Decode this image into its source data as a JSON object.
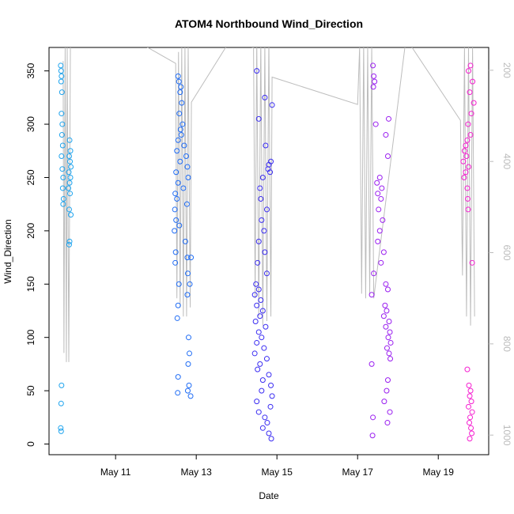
{
  "chart_data": {
    "type": "scatter",
    "title": "ATOM4 Northbound Wind_Direction",
    "x_label": "Date",
    "y_label": "Wind_Direction",
    "xlim": [
      9.35,
      20.25
    ],
    "ylim": [
      -10,
      372
    ],
    "y2lim": [
      1043,
      150
    ],
    "xticks": [
      {
        "value": 11,
        "label": "May 11"
      },
      {
        "value": 13,
        "label": "May 13"
      },
      {
        "value": 15,
        "label": "May 15"
      },
      {
        "value": 17,
        "label": "May 17"
      },
      {
        "value": 19,
        "label": "May 19"
      }
    ],
    "yticks": [
      0,
      50,
      100,
      150,
      200,
      250,
      300,
      350
    ],
    "y2ticks": [
      200,
      400,
      600,
      800,
      1000
    ],
    "series": [
      {
        "color": "#bdbdbd",
        "axis": "y2",
        "line": true,
        "x": [
          9.7,
          9.72,
          9.75,
          9.78,
          9.8,
          9.84,
          9.88,
          9.91,
          11.2,
          12.49,
          12.52,
          12.56,
          12.6,
          12.64,
          12.68,
          12.72,
          12.76,
          12.8,
          12.85,
          12.88,
          13.8,
          14.42,
          14.46,
          14.5,
          14.55,
          14.6,
          14.65,
          14.7,
          14.75,
          14.8,
          14.85,
          14.88,
          17.0,
          17.05,
          17.1,
          17.15,
          17.2,
          17.25,
          17.3,
          17.35,
          17.4,
          18.2,
          19.55,
          19.6,
          19.65,
          19.7,
          19.75,
          19.8,
          19.85,
          19.9
        ],
        "values": [
          180,
          820,
          150,
          840,
          150,
          840,
          140,
          120,
          120,
          185,
          700,
          160,
          720,
          150,
          740,
          150,
          740,
          150,
          720,
          270,
          140,
          150,
          700,
          130,
          740,
          130,
          760,
          140,
          750,
          130,
          740,
          215,
          275,
          150,
          690,
          140,
          700,
          150,
          690,
          150,
          700,
          130,
          310,
          650,
          150,
          740,
          150,
          760,
          150,
          740
        ]
      },
      {
        "color": "#1fa4ee",
        "x": [
          9.64,
          9.65,
          9.66,
          9.65,
          9.67,
          9.66,
          9.68,
          9.67,
          9.69,
          9.66,
          9.68,
          9.7,
          9.69,
          9.71,
          9.7,
          9.66,
          9.65,
          9.64,
          9.65,
          9.86,
          9.88,
          9.85,
          9.87,
          9.89,
          9.84,
          9.88,
          9.86,
          9.83,
          9.87,
          9.85,
          9.89,
          9.86,
          9.85
        ],
        "values": [
          355,
          350,
          345,
          340,
          330,
          310,
          300,
          290,
          280,
          270,
          258,
          250,
          240,
          230,
          225,
          55,
          38,
          15,
          12,
          285,
          275,
          270,
          265,
          260,
          255,
          250,
          245,
          240,
          235,
          220,
          215,
          190,
          187
        ]
      },
      {
        "color": "#1f6cf5",
        "x": [
          12.55,
          12.57,
          12.62,
          12.6,
          12.64,
          12.58,
          12.66,
          12.61,
          12.63,
          12.55,
          12.7,
          12.52,
          12.75,
          12.6,
          12.78,
          12.5,
          12.8,
          12.55,
          12.68,
          12.48,
          12.52,
          12.77,
          12.47,
          12.5,
          12.58,
          12.46,
          12.73,
          12.49,
          12.78,
          12.48,
          12.79,
          12.57,
          12.78,
          12.55,
          12.53,
          12.81,
          12.83,
          12.8,
          12.55,
          12.82,
          12.79,
          12.54,
          12.86,
          12.87,
          12.84
        ],
        "values": [
          345,
          340,
          335,
          330,
          320,
          310,
          300,
          295,
          290,
          285,
          280,
          275,
          270,
          265,
          260,
          255,
          250,
          245,
          240,
          235,
          230,
          225,
          220,
          210,
          205,
          200,
          190,
          180,
          175,
          170,
          160,
          150,
          140,
          130,
          118,
          100,
          85,
          75,
          63,
          55,
          50,
          48,
          45,
          175,
          150
        ]
      },
      {
        "color": "#3a2cf2",
        "x": [
          14.5,
          14.7,
          14.55,
          14.72,
          14.85,
          14.8,
          14.78,
          14.83,
          14.65,
          14.58,
          14.6,
          14.75,
          14.62,
          14.68,
          14.55,
          14.7,
          14.52,
          14.75,
          14.48,
          14.55,
          14.45,
          14.6,
          14.5,
          14.65,
          14.58,
          14.47,
          14.72,
          14.55,
          14.62,
          14.5,
          14.68,
          14.45,
          14.75,
          14.58,
          14.52,
          14.8,
          14.65,
          14.85,
          14.62,
          14.88,
          14.5,
          14.84,
          14.55,
          14.7,
          14.76,
          14.65,
          14.8,
          14.86,
          14.88
        ],
        "values": [
          350,
          325,
          305,
          280,
          265,
          262,
          258,
          255,
          250,
          240,
          230,
          220,
          210,
          200,
          190,
          180,
          170,
          160,
          150,
          145,
          140,
          135,
          130,
          125,
          120,
          115,
          110,
          105,
          100,
          95,
          90,
          85,
          80,
          75,
          70,
          65,
          60,
          55,
          50,
          45,
          40,
          35,
          30,
          25,
          20,
          15,
          10,
          5,
          318
        ]
      },
      {
        "color": "#9a1ef0",
        "x": [
          17.38,
          17.4,
          17.42,
          17.39,
          17.45,
          17.7,
          17.75,
          17.55,
          17.48,
          17.6,
          17.5,
          17.58,
          17.52,
          17.62,
          17.55,
          17.5,
          17.65,
          17.58,
          17.4,
          17.7,
          17.75,
          17.35,
          17.68,
          17.72,
          17.65,
          17.78,
          17.7,
          17.8,
          17.76,
          17.82,
          17.73,
          17.78,
          17.81,
          17.35,
          17.75,
          17.72,
          17.66,
          17.8,
          17.38,
          17.74,
          17.37,
          17.77
        ],
        "values": [
          355,
          345,
          340,
          335,
          300,
          290,
          270,
          250,
          245,
          240,
          235,
          230,
          220,
          210,
          200,
          190,
          180,
          170,
          160,
          150,
          145,
          140,
          130,
          125,
          120,
          115,
          110,
          105,
          100,
          95,
          90,
          85,
          80,
          75,
          60,
          50,
          40,
          30,
          25,
          20,
          8,
          305
        ]
      },
      {
        "color": "#f51fd0",
        "x": [
          19.8,
          19.75,
          19.85,
          19.78,
          19.88,
          19.82,
          19.74,
          19.8,
          19.72,
          19.68,
          19.65,
          19.7,
          19.62,
          19.75,
          19.68,
          19.64,
          19.72,
          19.73,
          19.74,
          19.84,
          19.72,
          19.76,
          19.8,
          19.78,
          19.82,
          19.75,
          19.84,
          19.79,
          19.77,
          19.81,
          19.83,
          19.78
        ],
        "values": [
          355,
          350,
          340,
          330,
          320,
          310,
          300,
          290,
          285,
          280,
          275,
          270,
          265,
          260,
          255,
          250,
          240,
          230,
          220,
          170,
          70,
          55,
          50,
          45,
          40,
          35,
          30,
          25,
          20,
          15,
          10,
          5
        ]
      }
    ]
  }
}
